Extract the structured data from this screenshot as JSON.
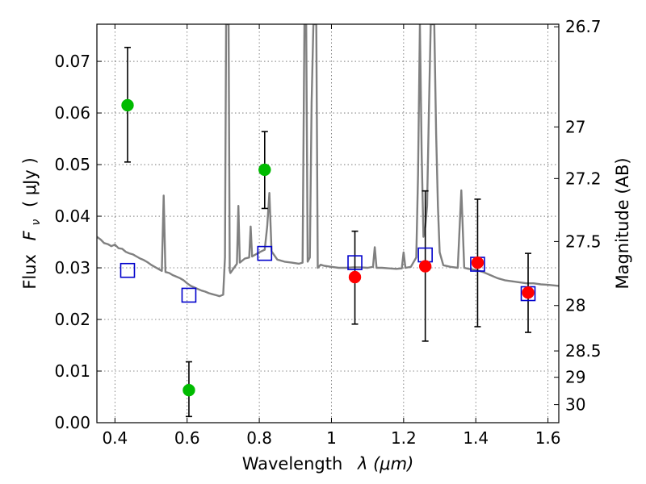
{
  "chart_data": {
    "type": "scatter",
    "xlabel_text": "Wavelength",
    "xlabel_math": "λ (μm)",
    "ylabel_text": "Flux",
    "ylabel_math": "F",
    "ylabel_sub": "ν",
    "ylabel_unit": "( μJy )",
    "y2label": "Magnitude (AB)",
    "xlim": [
      0.35,
      1.63
    ],
    "ylim": [
      0.0,
      0.0772
    ],
    "grid": true,
    "x_ticks": [
      {
        "value": 0.4,
        "label": "0.4"
      },
      {
        "value": 0.6,
        "label": "0.6"
      },
      {
        "value": 0.8,
        "label": "0.8"
      },
      {
        "value": 1.0,
        "label": "1"
      },
      {
        "value": 1.2,
        "label": "1.2"
      },
      {
        "value": 1.4,
        "label": "1.4"
      },
      {
        "value": 1.6,
        "label": "1.6"
      }
    ],
    "y_ticks": [
      {
        "value": 0.0,
        "label": "0.00"
      },
      {
        "value": 0.01,
        "label": "0.01"
      },
      {
        "value": 0.02,
        "label": "0.02"
      },
      {
        "value": 0.03,
        "label": "0.03"
      },
      {
        "value": 0.04,
        "label": "0.04"
      },
      {
        "value": 0.05,
        "label": "0.05"
      },
      {
        "value": 0.06,
        "label": "0.06"
      },
      {
        "value": 0.07,
        "label": "0.07"
      }
    ],
    "y2_ticks": [
      {
        "flux": 0.0767,
        "label": "26.7"
      },
      {
        "flux": 0.0573,
        "label": "27"
      },
      {
        "flux": 0.0473,
        "label": "27.2"
      },
      {
        "flux": 0.0351,
        "label": "27.5"
      },
      {
        "flux": 0.0227,
        "label": "28"
      },
      {
        "flux": 0.0139,
        "label": "28.5"
      },
      {
        "flux": 0.0088,
        "label": "29"
      },
      {
        "flux": 0.0035,
        "label": "30"
      }
    ],
    "colors": {
      "spectrum": "#808080",
      "green_points": "#00bb00",
      "red_points": "#ff0000",
      "model_squares": "#0000cc",
      "errorbar": "#000000"
    },
    "series": [
      {
        "kind": "spectrum",
        "points": [
          [
            0.35,
            0.036
          ],
          [
            0.36,
            0.0355
          ],
          [
            0.37,
            0.0348
          ],
          [
            0.38,
            0.0346
          ],
          [
            0.39,
            0.0342
          ],
          [
            0.4,
            0.0345
          ],
          [
            0.41,
            0.0338
          ],
          [
            0.42,
            0.0337
          ],
          [
            0.43,
            0.0331
          ],
          [
            0.44,
            0.0328
          ],
          [
            0.45,
            0.0326
          ],
          [
            0.46,
            0.0322
          ],
          [
            0.47,
            0.0318
          ],
          [
            0.48,
            0.0315
          ],
          [
            0.49,
            0.0311
          ],
          [
            0.5,
            0.0306
          ],
          [
            0.51,
            0.0302
          ],
          [
            0.52,
            0.0298
          ],
          [
            0.53,
            0.0294
          ],
          [
            0.535,
            0.044
          ],
          [
            0.54,
            0.0292
          ],
          [
            0.55,
            0.029
          ],
          [
            0.56,
            0.0286
          ],
          [
            0.57,
            0.0283
          ],
          [
            0.58,
            0.028
          ],
          [
            0.59,
            0.0276
          ],
          [
            0.6,
            0.027
          ],
          [
            0.61,
            0.0265
          ],
          [
            0.62,
            0.0262
          ],
          [
            0.63,
            0.0259
          ],
          [
            0.64,
            0.0256
          ],
          [
            0.65,
            0.0254
          ],
          [
            0.66,
            0.0251
          ],
          [
            0.67,
            0.0249
          ],
          [
            0.68,
            0.0247
          ],
          [
            0.69,
            0.0245
          ],
          [
            0.7,
            0.0248
          ],
          [
            0.705,
            0.032
          ],
          [
            0.708,
            0.0772
          ],
          [
            0.715,
            0.0772
          ],
          [
            0.718,
            0.0295
          ],
          [
            0.72,
            0.029
          ],
          [
            0.73,
            0.03
          ],
          [
            0.738,
            0.0308
          ],
          [
            0.742,
            0.042
          ],
          [
            0.746,
            0.031
          ],
          [
            0.76,
            0.0318
          ],
          [
            0.772,
            0.032
          ],
          [
            0.776,
            0.038
          ],
          [
            0.78,
            0.0322
          ],
          [
            0.8,
            0.033
          ],
          [
            0.815,
            0.0335
          ],
          [
            0.822,
            0.038
          ],
          [
            0.828,
            0.0445
          ],
          [
            0.834,
            0.0332
          ],
          [
            0.85,
            0.0316
          ],
          [
            0.87,
            0.0312
          ],
          [
            0.89,
            0.031
          ],
          [
            0.91,
            0.0308
          ],
          [
            0.92,
            0.031
          ],
          [
            0.925,
            0.0772
          ],
          [
            0.93,
            0.0772
          ],
          [
            0.934,
            0.0312
          ],
          [
            0.94,
            0.032
          ],
          [
            0.945,
            0.062
          ],
          [
            0.95,
            0.0772
          ],
          [
            0.958,
            0.0772
          ],
          [
            0.962,
            0.03
          ],
          [
            0.97,
            0.0306
          ],
          [
            0.98,
            0.0304
          ],
          [
            1.0,
            0.0302
          ],
          [
            1.02,
            0.03
          ],
          [
            1.04,
            0.03
          ],
          [
            1.06,
            0.0301
          ],
          [
            1.08,
            0.0301
          ],
          [
            1.1,
            0.03
          ],
          [
            1.115,
            0.0302
          ],
          [
            1.12,
            0.034
          ],
          [
            1.125,
            0.03
          ],
          [
            1.14,
            0.03
          ],
          [
            1.16,
            0.0299
          ],
          [
            1.18,
            0.0298
          ],
          [
            1.195,
            0.0299
          ],
          [
            1.2,
            0.033
          ],
          [
            1.205,
            0.03
          ],
          [
            1.22,
            0.0302
          ],
          [
            1.235,
            0.032
          ],
          [
            1.24,
            0.048
          ],
          [
            1.245,
            0.0772
          ],
          [
            1.25,
            0.052
          ],
          [
            1.255,
            0.036
          ],
          [
            1.26,
            0.038
          ],
          [
            1.265,
            0.042
          ],
          [
            1.27,
            0.06
          ],
          [
            1.275,
            0.0772
          ],
          [
            1.285,
            0.0772
          ],
          [
            1.29,
            0.056
          ],
          [
            1.295,
            0.042
          ],
          [
            1.3,
            0.033
          ],
          [
            1.31,
            0.0305
          ],
          [
            1.33,
            0.0302
          ],
          [
            1.35,
            0.03
          ],
          [
            1.36,
            0.045
          ],
          [
            1.368,
            0.03
          ],
          [
            1.38,
            0.0298
          ],
          [
            1.4,
            0.0296
          ],
          [
            1.42,
            0.0292
          ],
          [
            1.44,
            0.0286
          ],
          [
            1.46,
            0.028
          ],
          [
            1.48,
            0.0276
          ],
          [
            1.5,
            0.0274
          ],
          [
            1.52,
            0.0272
          ],
          [
            1.54,
            0.027
          ],
          [
            1.56,
            0.027
          ],
          [
            1.58,
            0.0268
          ],
          [
            1.6,
            0.0267
          ],
          [
            1.63,
            0.0265
          ]
        ]
      },
      {
        "kind": "green_points",
        "points": [
          {
            "x": 0.435,
            "y": 0.0615,
            "ylo": 0.0505,
            "yhi": 0.0727
          },
          {
            "x": 0.605,
            "y": 0.0063,
            "ylo": 0.0012,
            "yhi": 0.0118
          },
          {
            "x": 0.815,
            "y": 0.049,
            "ylo": 0.0415,
            "yhi": 0.0564
          }
        ]
      },
      {
        "kind": "red_points",
        "points": [
          {
            "x": 1.065,
            "y": 0.0282,
            "ylo": 0.0191,
            "yhi": 0.0371
          },
          {
            "x": 1.26,
            "y": 0.0303,
            "ylo": 0.0158,
            "yhi": 0.0449
          },
          {
            "x": 1.405,
            "y": 0.031,
            "ylo": 0.0186,
            "yhi": 0.0433
          },
          {
            "x": 1.545,
            "y": 0.0252,
            "ylo": 0.0175,
            "yhi": 0.0328
          }
        ]
      },
      {
        "kind": "model_squares",
        "points": [
          {
            "x": 0.435,
            "y": 0.0295
          },
          {
            "x": 0.605,
            "y": 0.0247
          },
          {
            "x": 0.815,
            "y": 0.0328
          },
          {
            "x": 1.065,
            "y": 0.031
          },
          {
            "x": 1.26,
            "y": 0.0325
          },
          {
            "x": 1.405,
            "y": 0.0307
          },
          {
            "x": 1.545,
            "y": 0.025
          }
        ]
      }
    ]
  }
}
